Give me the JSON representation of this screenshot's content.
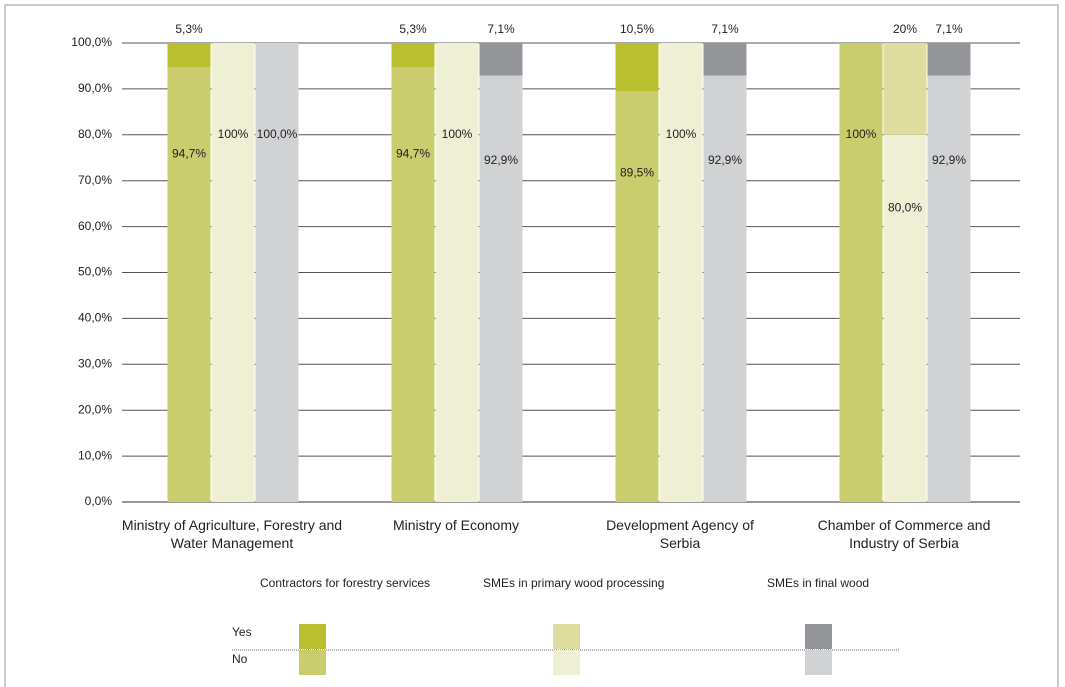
{
  "chart_data": {
    "type": "grouped_stacked_bar",
    "categories": [
      "Ministry of Agriculture, Forestry and Water Management",
      "Ministry of Economy",
      "Development Agency of Serbia",
      "Chamber of Commerce and Industry of Serbia"
    ],
    "ylim": [
      0,
      100
    ],
    "yticks": [
      {
        "value": 0,
        "label": "0,0%"
      },
      {
        "value": 10,
        "label": "10,0%"
      },
      {
        "value": 20,
        "label": "20,0%"
      },
      {
        "value": 30,
        "label": "30,0%"
      },
      {
        "value": 40,
        "label": "40,0%"
      },
      {
        "value": 50,
        "label": "50,0%"
      },
      {
        "value": 60,
        "label": "60,0%"
      },
      {
        "value": 70,
        "label": "70,0%"
      },
      {
        "value": 80,
        "label": "80,0%"
      },
      {
        "value": 90,
        "label": "90,0%"
      },
      {
        "value": 100,
        "label": "100,0%"
      }
    ],
    "grid": true,
    "legend_rows": [
      "Yes",
      "No"
    ],
    "groups": [
      {
        "name": "Contractors for forestry services",
        "series": [
          {
            "color": "#b9bf2e",
            "values": [
              5.3,
              5.3,
              10.5,
              0
            ],
            "value_labels": [
              "5,3%",
              "5,3%",
              "10,5%",
              null
            ]
          },
          {
            "color": "#c9cd6d",
            "values": [
              94.7,
              94.7,
              89.5,
              100
            ],
            "value_labels": [
              "94,7%",
              "94,7%",
              "89,5%",
              "100%"
            ]
          }
        ]
      },
      {
        "name": "SMEs in primary wood processing",
        "series": [
          {
            "color": "#dcdd9f",
            "values": [
              0,
              0,
              0,
              20
            ],
            "value_labels": [
              null,
              null,
              null,
              "20%"
            ]
          },
          {
            "color": "#efefd5",
            "values": [
              100,
              100,
              100,
              80
            ],
            "value_labels": [
              "100%",
              "100%",
              "100%",
              "80,0%"
            ]
          }
        ]
      },
      {
        "name": "SMEs in final wood",
        "series": [
          {
            "color": "#939598",
            "values": [
              0,
              7.1,
              7.1,
              7.1
            ],
            "value_labels": [
              null,
              "7,1%",
              "7,1%",
              "7,1%"
            ]
          },
          {
            "color": "#d1d2d4",
            "values": [
              100,
              92.9,
              92.9,
              92.9
            ],
            "value_labels": [
              "100,0%",
              "92,9%",
              "92,9%",
              "92,9%"
            ]
          }
        ]
      }
    ]
  }
}
